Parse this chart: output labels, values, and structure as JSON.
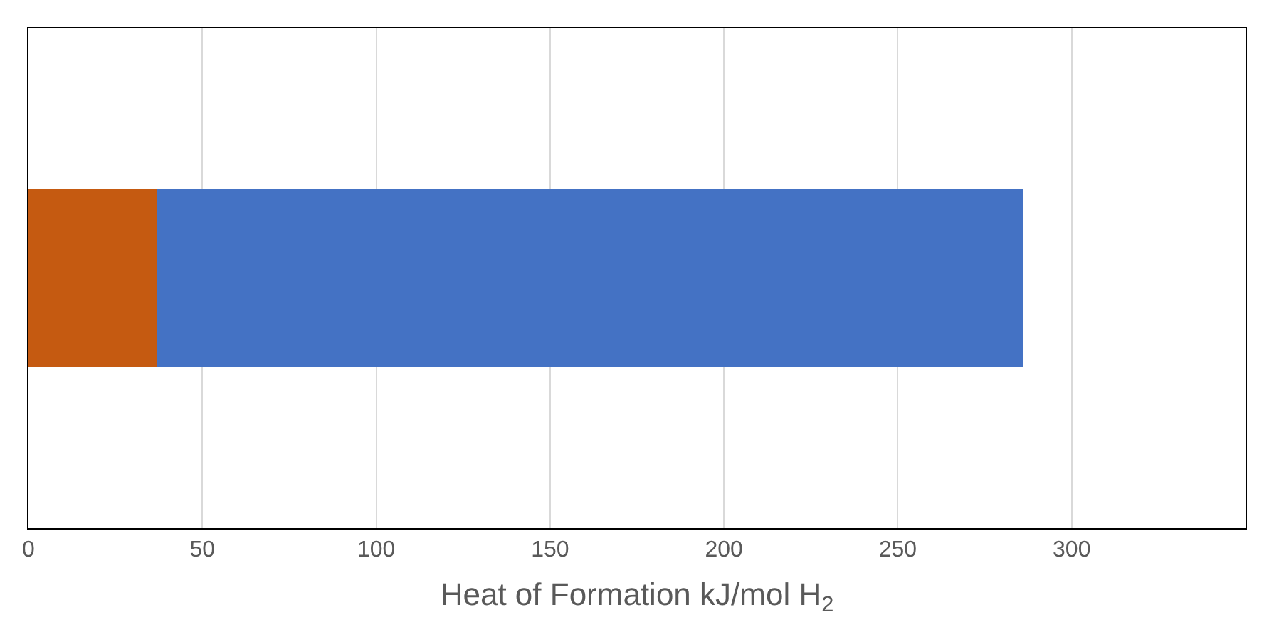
{
  "chart_data": {
    "type": "bar",
    "orientation": "horizontal",
    "stacked": true,
    "xlabel": "Heat of Formation kJ/mol H$_{2}$",
    "categories": [
      null
    ],
    "series": [
      {
        "color": "#c55a11",
        "values": [
          37
        ]
      },
      {
        "color": "#4472c4",
        "values": [
          249
        ]
      }
    ],
    "xlim": [
      0,
      350
    ],
    "xticks": [
      0,
      50,
      100,
      150,
      200,
      250,
      300,
      {
        "value": 350,
        "label": null
      }
    ],
    "grid": "x"
  }
}
